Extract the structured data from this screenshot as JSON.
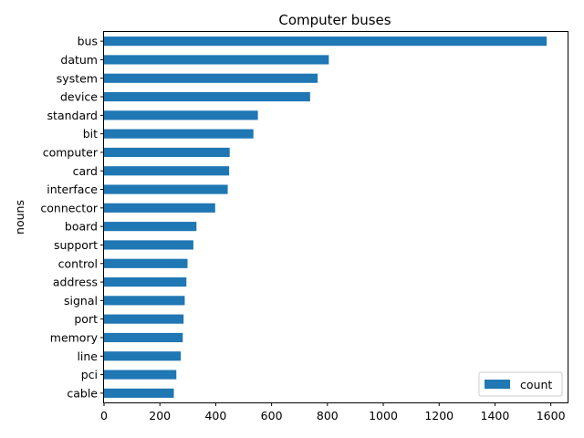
{
  "chart_data": {
    "type": "bar",
    "orientation": "horizontal",
    "title": "Computer buses",
    "xlabel": "",
    "ylabel": "nouns",
    "xlim": [
      0,
      1660
    ],
    "xticks": [
      0,
      200,
      400,
      600,
      800,
      1000,
      1200,
      1400,
      1600
    ],
    "grid": false,
    "legend_position": "lower-right",
    "categories": [
      "bus",
      "datum",
      "system",
      "device",
      "standard",
      "bit",
      "computer",
      "card",
      "interface",
      "connector",
      "board",
      "support",
      "control",
      "address",
      "signal",
      "port",
      "memory",
      "line",
      "pci",
      "cable"
    ],
    "series": [
      {
        "name": "count",
        "color": "#1f77b4",
        "values": [
          1585,
          805,
          765,
          738,
          551,
          535,
          450,
          448,
          443,
          398,
          331,
          320,
          299,
          295,
          289,
          285,
          282,
          275,
          259,
          250
        ]
      }
    ]
  }
}
